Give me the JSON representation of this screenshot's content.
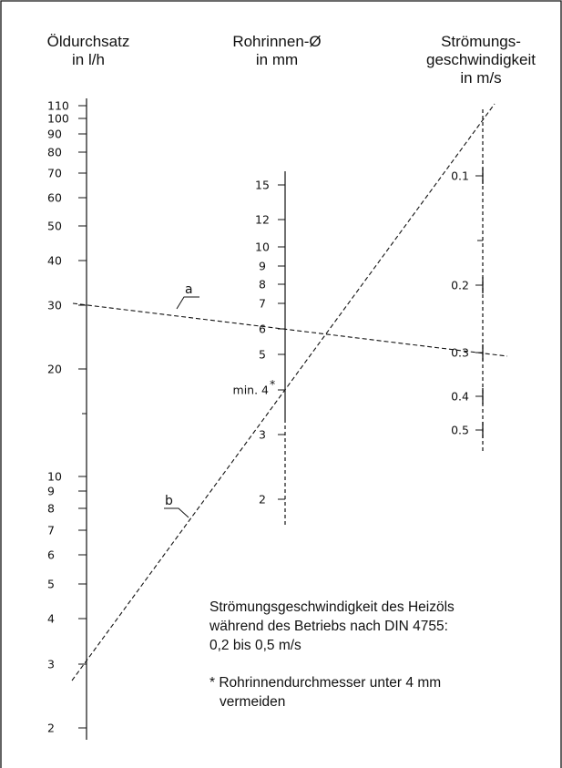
{
  "headers": {
    "left": [
      "Öldurchsatz",
      "in l/h"
    ],
    "middle": [
      "Rohrinnen-Ø",
      "in mm"
    ],
    "right": [
      "Strömungs-",
      "geschwindigkeit",
      "in m/s"
    ]
  },
  "scales": {
    "left": {
      "ticks": [
        "110",
        "100",
        "90",
        "80",
        "70",
        "60",
        "50",
        "40",
        "30",
        "20",
        "10",
        "9",
        "8",
        "7",
        "6",
        "5",
        "4",
        "3",
        "2"
      ],
      "unlabeled_ticks": 1
    },
    "middle": {
      "ticks": [
        "15",
        "12",
        "10",
        "9",
        "8",
        "7",
        "6",
        "5",
        "min. 4",
        "3",
        "2"
      ],
      "min_note": "*"
    },
    "right": {
      "ticks": [
        "0.1",
        "0.2",
        "0.3",
        "0.4",
        "0.5"
      ],
      "unlabeled_ticks": 1
    }
  },
  "lines": {
    "a": "a",
    "b": "b"
  },
  "notes": {
    "line1": "Strömungsgeschwindigkeit des Heizöls",
    "line2": "während des Betriebs nach DIN 4755:",
    "line3": "0,2 bis 0,5 m/s",
    "footnote1": "* Rohrinnendurchmesser unter 4 mm",
    "footnote2": "vermeiden"
  }
}
